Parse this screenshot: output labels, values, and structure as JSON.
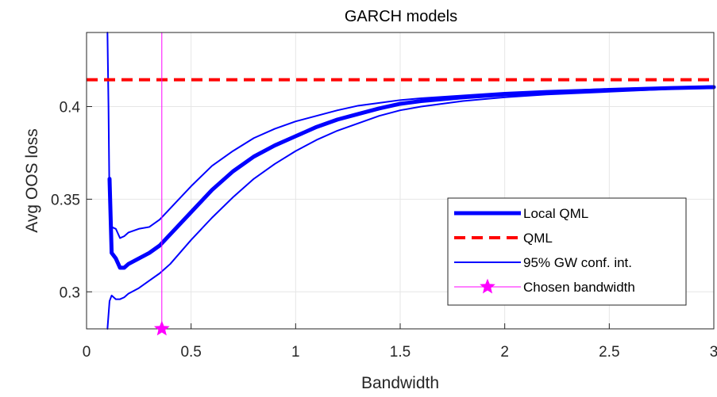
{
  "chart_data": {
    "type": "line",
    "title": "GARCH models",
    "xlabel": "Bandwidth",
    "ylabel": "Avg OOS loss",
    "xlim": [
      0,
      3
    ],
    "ylim": [
      0.28,
      0.44
    ],
    "xticks": [
      0,
      0.5,
      1,
      1.5,
      2,
      2.5,
      3
    ],
    "xtick_labels": [
      "0",
      "0.5",
      "1",
      "1.5",
      "2",
      "2.5",
      "3"
    ],
    "yticks": [
      0.3,
      0.35,
      0.4
    ],
    "ytick_labels": [
      "0.3",
      "0.35",
      "0.4"
    ],
    "grid": true,
    "legend_position": "bottom-right",
    "colors": {
      "local_qml": "#0000ff",
      "qml": "#ff0000",
      "ci": "#0000ff",
      "chosen": "#ff00ff"
    },
    "series": [
      {
        "name": "Local QML",
        "style": "thick-solid",
        "x": [
          0.11,
          0.12,
          0.14,
          0.16,
          0.18,
          0.2,
          0.25,
          0.3,
          0.35,
          0.4,
          0.5,
          0.6,
          0.7,
          0.8,
          0.9,
          1.0,
          1.1,
          1.2,
          1.3,
          1.4,
          1.5,
          1.6,
          1.8,
          2.0,
          2.2,
          2.5,
          2.8,
          3.0
        ],
        "y": [
          0.361,
          0.321,
          0.318,
          0.313,
          0.313,
          0.315,
          0.318,
          0.321,
          0.325,
          0.331,
          0.343,
          0.355,
          0.365,
          0.373,
          0.379,
          0.384,
          0.389,
          0.393,
          0.396,
          0.399,
          0.4015,
          0.403,
          0.405,
          0.4065,
          0.4075,
          0.409,
          0.41,
          0.4105
        ]
      },
      {
        "name": "QML",
        "style": "dashed",
        "x": [
          0,
          3
        ],
        "y": [
          0.4145,
          0.4145
        ]
      },
      {
        "name": "95% GW conf. int.",
        "style": "thin-solid",
        "x": [
          0.1,
          0.105,
          0.11,
          0.12,
          0.14,
          0.16,
          0.18,
          0.2,
          0.25,
          0.3,
          0.35,
          0.4,
          0.5,
          0.6,
          0.7,
          0.8,
          0.9,
          1.0,
          1.1,
          1.2,
          1.3,
          1.4,
          1.5,
          1.6,
          1.8,
          2.0,
          2.2,
          2.5,
          2.8,
          3.0
        ],
        "y": [
          0.44,
          0.4,
          0.345,
          0.335,
          0.334,
          0.329,
          0.33,
          0.332,
          0.334,
          0.335,
          0.339,
          0.345,
          0.357,
          0.368,
          0.376,
          0.383,
          0.388,
          0.392,
          0.395,
          0.398,
          0.4005,
          0.402,
          0.4035,
          0.4045,
          0.406,
          0.4075,
          0.4085,
          0.4095,
          0.4105,
          0.411
        ]
      },
      {
        "name": "95% GW conf. int. (lower)",
        "style": "thin-solid",
        "legend": false,
        "x": [
          0.1,
          0.11,
          0.12,
          0.14,
          0.16,
          0.18,
          0.2,
          0.25,
          0.3,
          0.35,
          0.4,
          0.5,
          0.6,
          0.7,
          0.8,
          0.9,
          1.0,
          1.1,
          1.2,
          1.3,
          1.4,
          1.5,
          1.6,
          1.8,
          2.0,
          2.2,
          2.5,
          2.8,
          3.0
        ],
        "y": [
          0.28,
          0.295,
          0.298,
          0.296,
          0.296,
          0.297,
          0.299,
          0.302,
          0.306,
          0.31,
          0.315,
          0.328,
          0.34,
          0.351,
          0.361,
          0.369,
          0.376,
          0.382,
          0.387,
          0.391,
          0.395,
          0.398,
          0.4,
          0.403,
          0.405,
          0.4065,
          0.408,
          0.4095,
          0.41
        ]
      }
    ],
    "chosen_bandwidth": {
      "name": "Chosen bandwidth",
      "x": 0.36,
      "y": 0.28
    },
    "legend": [
      {
        "label": "Local QML",
        "style": "thick-solid",
        "color": "#0000ff"
      },
      {
        "label": "QML",
        "style": "dashed",
        "color": "#ff0000"
      },
      {
        "label": "95% GW conf. int.",
        "style": "thin-solid",
        "color": "#0000ff"
      },
      {
        "label": "Chosen bandwidth",
        "style": "star-line",
        "color": "#ff00ff"
      }
    ]
  }
}
